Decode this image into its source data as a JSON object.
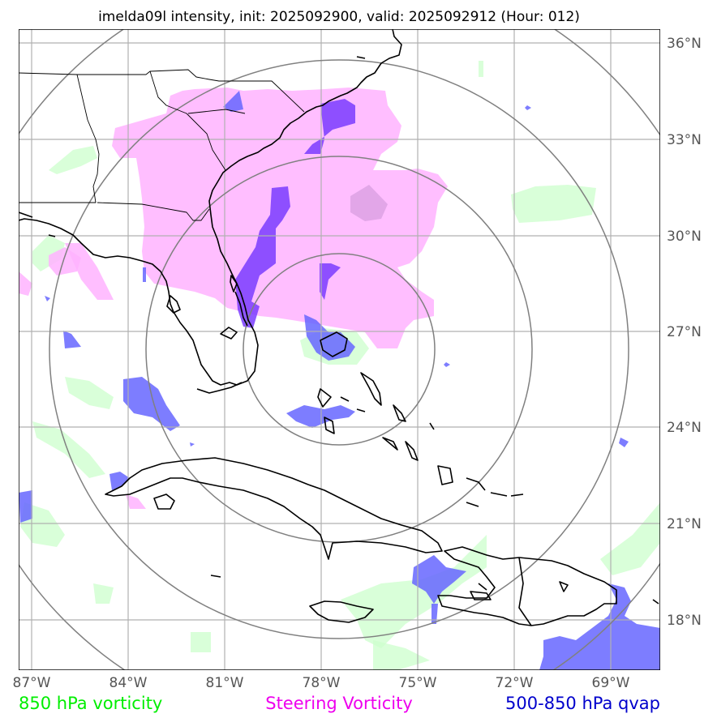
{
  "title": "imelda09l intensity, init: 2025092900, valid: 2025092912 (Hour: 012)",
  "lon_labels": [
    "87°W",
    "84°W",
    "81°W",
    "78°W",
    "75°W",
    "72°W",
    "69°W"
  ],
  "lat_labels": [
    "36°N",
    "33°N",
    "30°N",
    "27°N",
    "24°N",
    "21°N",
    "18°N"
  ],
  "legend": {
    "vort850": "850 hPa vorticity",
    "steering": "Steering Vorticity",
    "qvap": "500-850 hPa qvap"
  },
  "colors": {
    "vort850": "#00ee00",
    "steering": "#ee00ee",
    "qvap": "#0000cc",
    "vort850_fill": "#ccffcc",
    "steering_fill": "#ffb3ff",
    "qvap_fill": "#6666ff",
    "grid": "#b0b0b0",
    "rings": "#808080",
    "coast": "#000000"
  }
}
